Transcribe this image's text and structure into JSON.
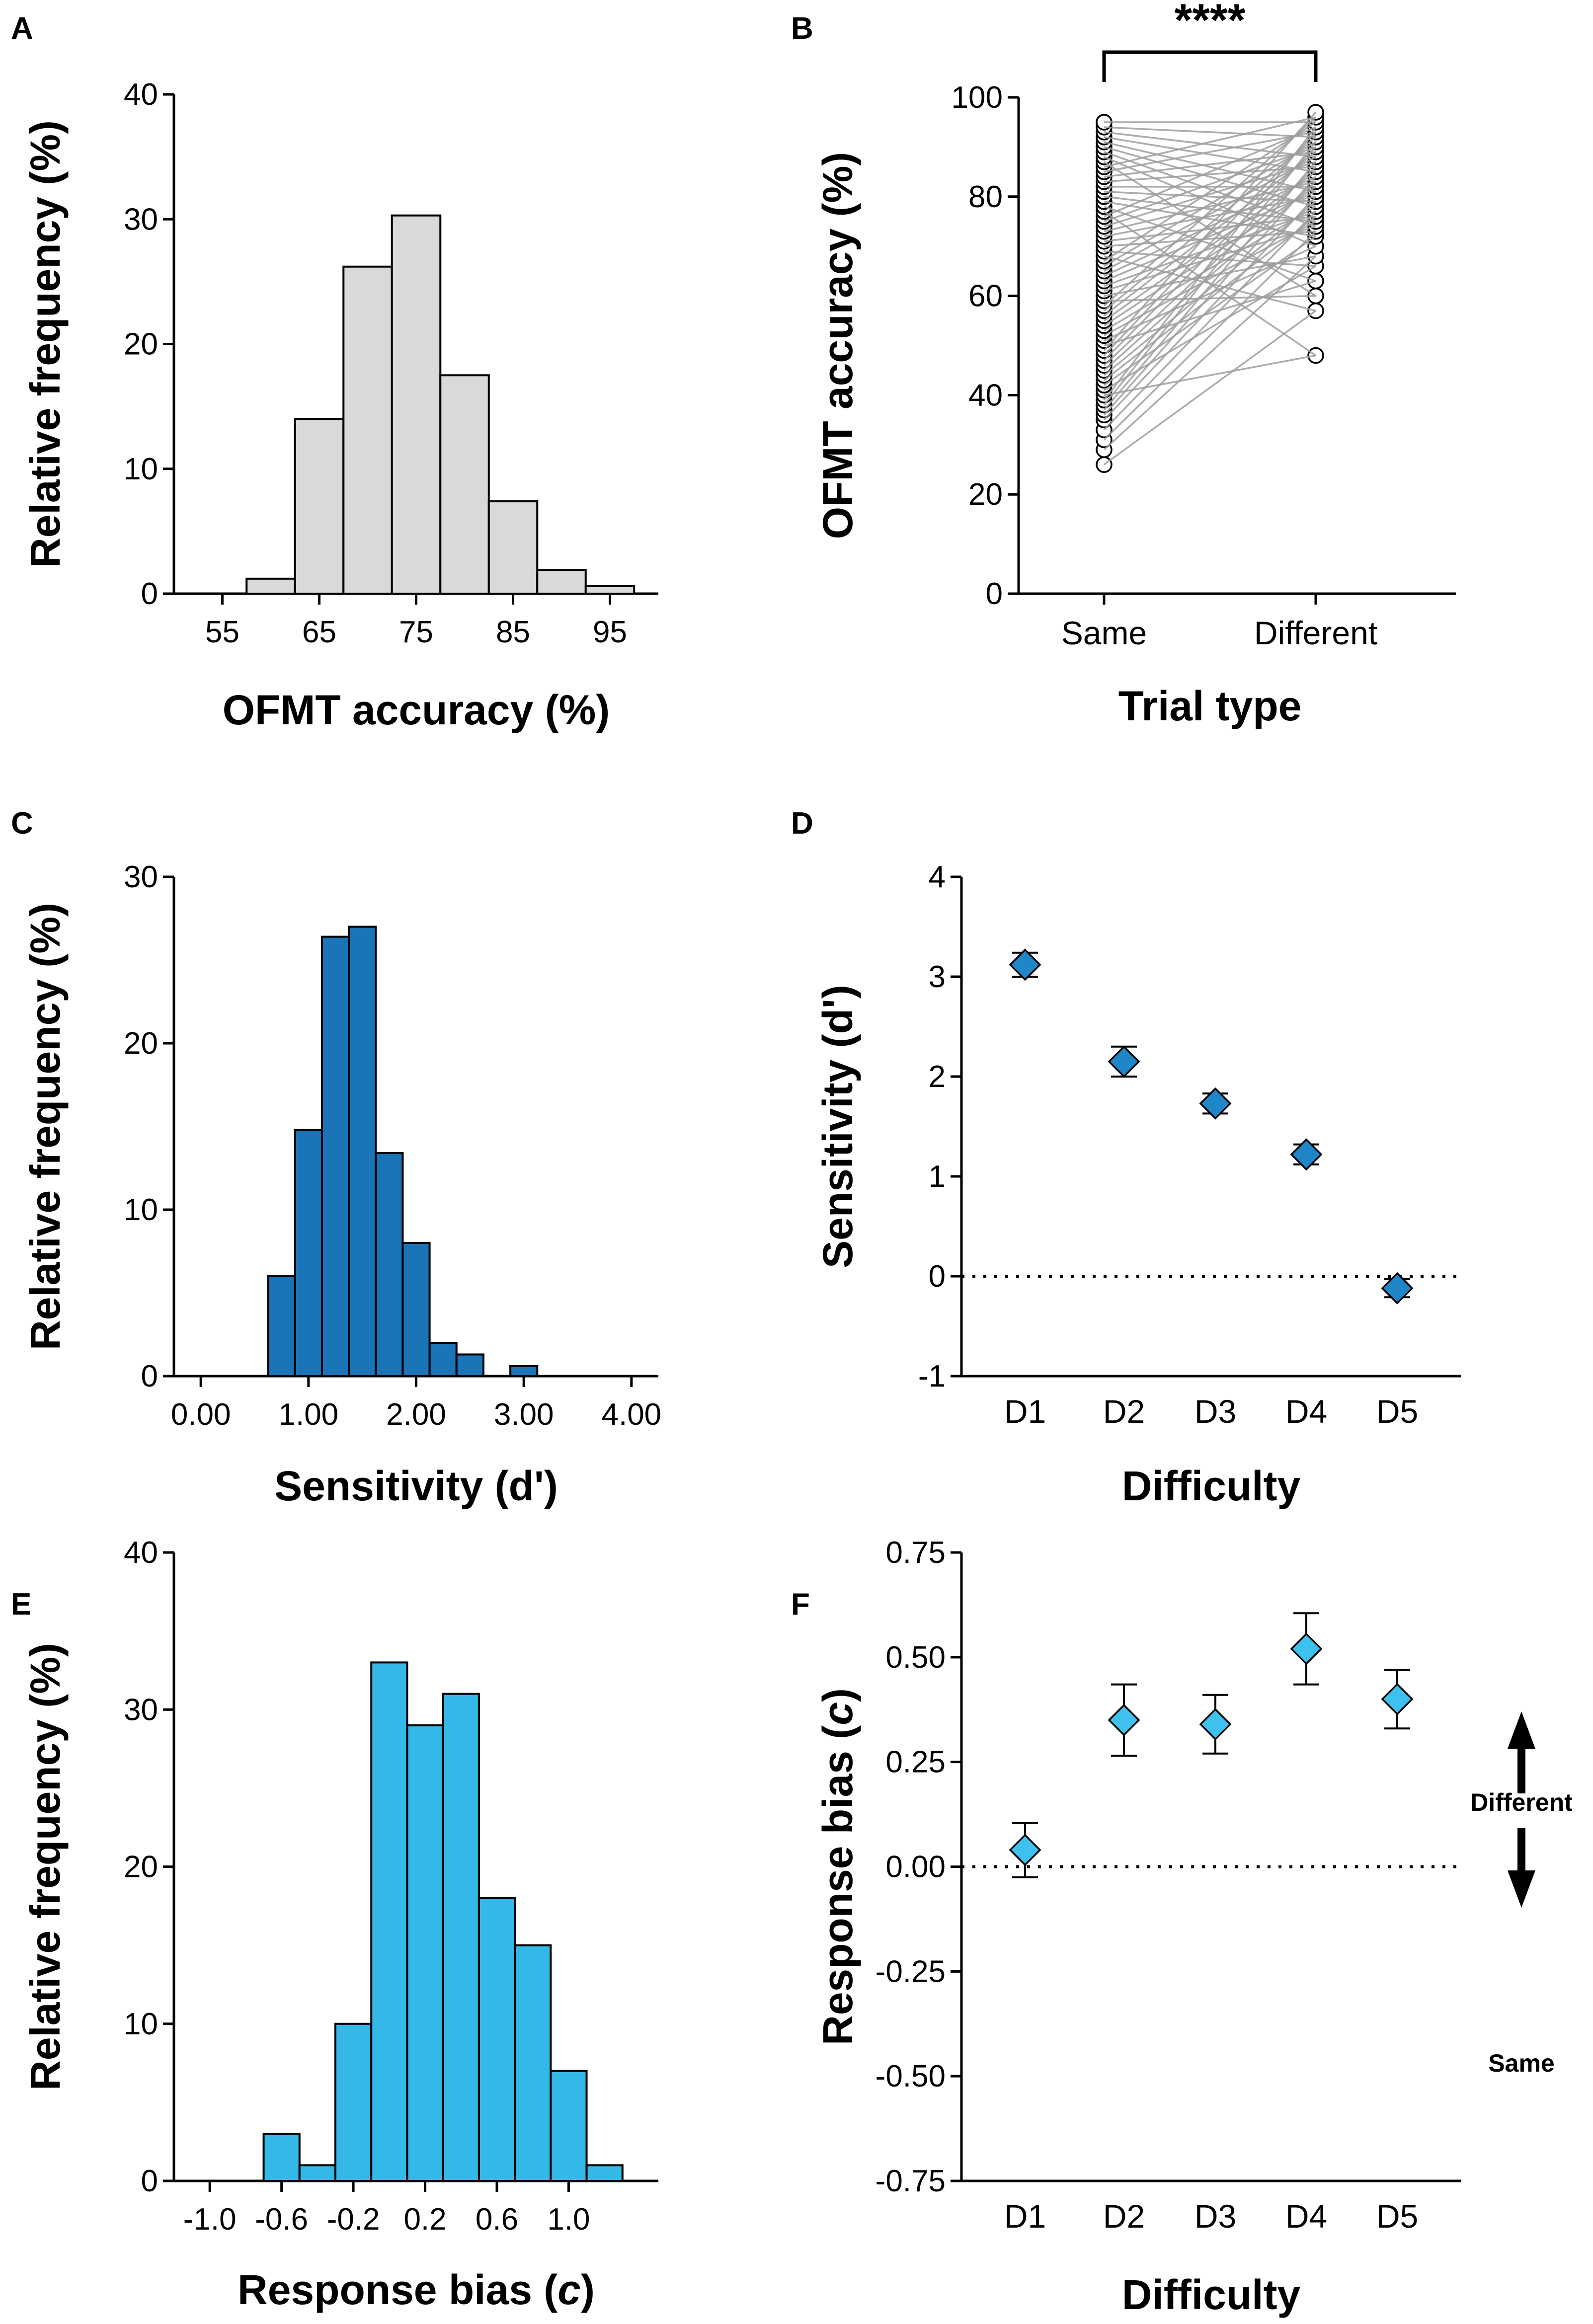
{
  "colors": {
    "hist_a": "#d9d9d9",
    "hist_c": "#1b74b8",
    "hist_e": "#34b8e8",
    "marker_d": "#1f86c8",
    "marker_f": "#3ec1ee",
    "pair_line": "#9e9e9e"
  },
  "chart_data": [
    {
      "panel": "A",
      "type": "bar",
      "title": "",
      "xlabel": "OFMT accuracy  (%)",
      "ylabel": "Relative frequency (%)",
      "ylim": [
        0,
        40
      ],
      "yticks": [
        "0",
        "10",
        "20",
        "30",
        "40"
      ],
      "xlim": [
        50,
        100
      ],
      "xticks": [
        55,
        65,
        75,
        85,
        95
      ],
      "xtick_labels": [
        "55",
        "65",
        "75",
        "85",
        "95"
      ],
      "bin_width": 5,
      "bin_centers": [
        55,
        60,
        65,
        70,
        75,
        80,
        85,
        90,
        95
      ],
      "values": [
        0,
        1.2,
        14,
        26.2,
        30.3,
        17.5,
        7.4,
        1.9,
        0.6
      ]
    },
    {
      "panel": "B",
      "type": "scatter",
      "title": "",
      "xlabel": "Trial type",
      "ylabel": "OFMT accuracy  (%)",
      "ylim": [
        0,
        100
      ],
      "yticks": [
        "0",
        "20",
        "40",
        "60",
        "80",
        "100"
      ],
      "categories": [
        "Same",
        "Different"
      ],
      "significance": "****",
      "same_values": [
        26,
        29,
        31,
        33,
        35,
        36,
        37,
        38,
        39,
        40,
        41,
        42,
        43,
        44,
        45,
        46,
        47,
        48,
        49,
        50,
        51,
        52,
        53,
        54,
        55,
        56,
        57,
        58,
        59,
        60,
        61,
        62,
        63,
        64,
        65,
        66,
        67,
        68,
        69,
        70,
        71,
        72,
        73,
        74,
        75,
        76,
        77,
        78,
        79,
        80,
        81,
        82,
        83,
        84,
        85,
        86,
        87,
        88,
        89,
        90,
        91,
        92,
        93,
        94,
        95
      ],
      "different_values": [
        48,
        57,
        60,
        63,
        66,
        68,
        70,
        72,
        73,
        74,
        75,
        76,
        77,
        78,
        79,
        80,
        81,
        82,
        83,
        84,
        85,
        86,
        87,
        88,
        89,
        90,
        91,
        92,
        93,
        94,
        95,
        96,
        97
      ]
    },
    {
      "panel": "C",
      "type": "bar",
      "title": "",
      "xlabel": "Sensitivity (d')",
      "ylabel": "Relative frequency (%)",
      "ylim": [
        0,
        30
      ],
      "yticks": [
        "0",
        "10",
        "20",
        "30"
      ],
      "xlim": [
        -0.25,
        4.25
      ],
      "xticks": [
        0,
        1,
        2,
        3,
        4
      ],
      "xtick_labels": [
        "0.00",
        "1.00",
        "2.00",
        "3.00",
        "4.00"
      ],
      "bin_width": 0.25,
      "bin_centers": [
        0.75,
        1.0,
        1.25,
        1.5,
        1.75,
        2.0,
        2.25,
        2.5,
        2.75,
        3.0
      ],
      "values": [
        6,
        14.8,
        26.4,
        27,
        13.4,
        8,
        2,
        1.3,
        0,
        0.6
      ]
    },
    {
      "panel": "D",
      "type": "scatter",
      "title": "",
      "xlabel": "Difficulty",
      "ylabel": "Sensitivity (d')",
      "ylim": [
        -1,
        4
      ],
      "yticks": [
        "-1",
        "0",
        "1",
        "2",
        "3",
        "4"
      ],
      "categories": [
        "D1",
        "D2",
        "D3",
        "D4",
        "D5"
      ],
      "values": [
        3.12,
        2.15,
        1.73,
        1.22,
        -0.12
      ],
      "errors": [
        0.12,
        0.15,
        0.1,
        0.1,
        0.09
      ],
      "reference_line": 0
    },
    {
      "panel": "E",
      "type": "bar",
      "title": "",
      "xlabel": "Response bias (c)",
      "ylabel": "Relative frequency (%)",
      "ylim": [
        0,
        40
      ],
      "yticks": [
        "0",
        "10",
        "20",
        "30",
        "40"
      ],
      "xlim": [
        -1.2,
        1.5
      ],
      "xticks": [
        -1.0,
        -0.6,
        -0.2,
        0.2,
        0.6,
        1.0
      ],
      "xtick_labels": [
        "-1.0",
        "-0.6",
        "-0.2",
        "0.2",
        "0.6",
        "1.0"
      ],
      "bin_width": 0.2,
      "bin_centers": [
        -1.0,
        -0.8,
        -0.6,
        -0.4,
        -0.2,
        0.0,
        0.2,
        0.4,
        0.6,
        0.8,
        1.0,
        1.2
      ],
      "values": [
        0,
        0,
        3,
        1,
        10,
        33,
        29,
        31,
        18,
        15,
        7,
        1
      ]
    },
    {
      "panel": "F",
      "type": "scatter",
      "title": "",
      "xlabel": "Difficulty",
      "ylabel": "Response bias (c)",
      "ylim": [
        -0.75,
        0.75
      ],
      "yticks": [
        "-0.75",
        "-0.50",
        "-0.25",
        "0.00",
        "0.25",
        "0.50",
        "0.75"
      ],
      "categories": [
        "D1",
        "D2",
        "D3",
        "D4",
        "D5"
      ],
      "values": [
        0.04,
        0.35,
        0.34,
        0.52,
        0.4
      ],
      "errors": [
        0.065,
        0.085,
        0.07,
        0.085,
        0.07
      ],
      "reference_line": 0,
      "direction_labels": [
        "Different",
        "Same"
      ]
    }
  ]
}
